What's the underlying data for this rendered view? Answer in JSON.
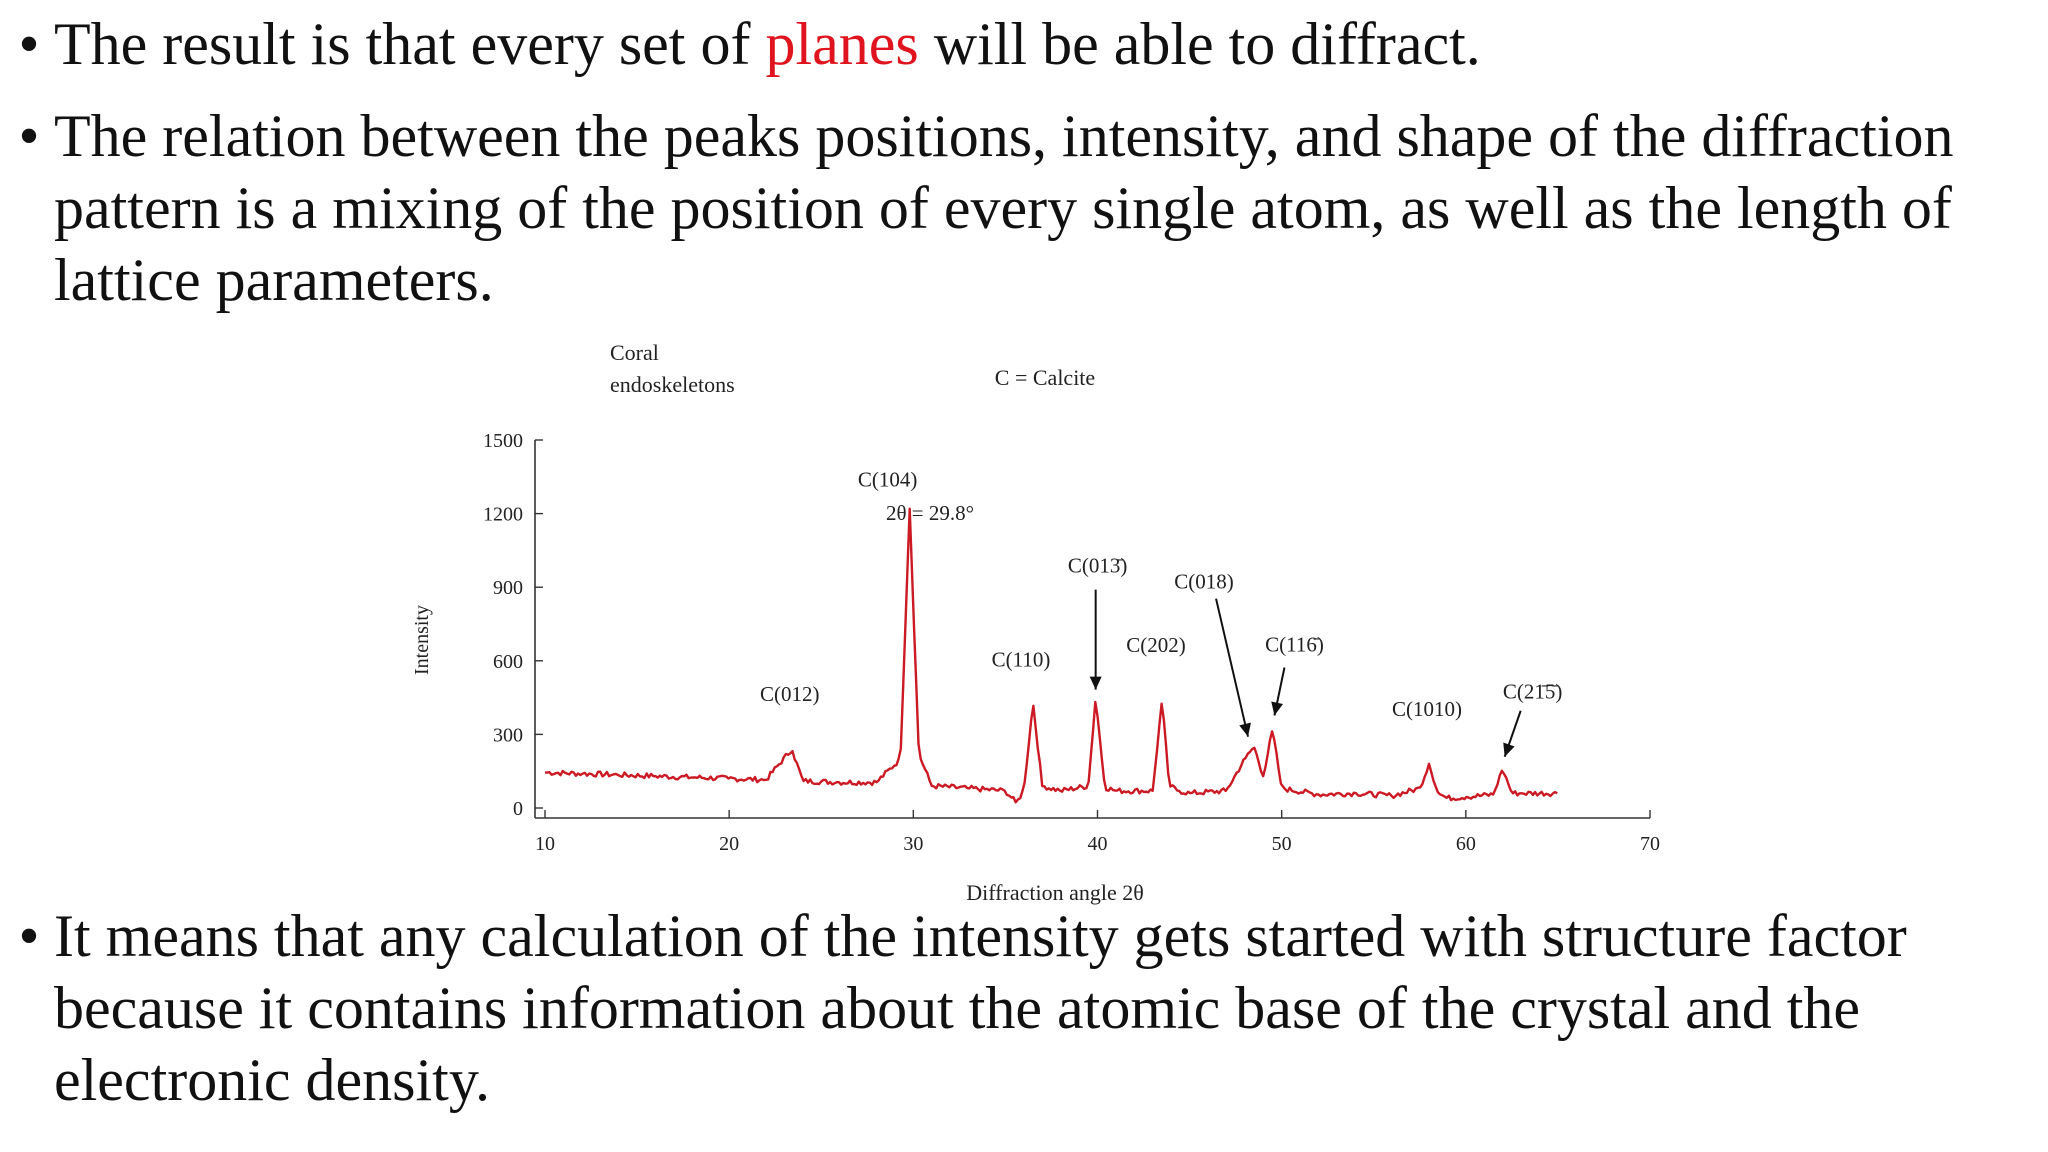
{
  "bullets": [
    {
      "pre": "The result is that every set of ",
      "highlight": "planes",
      "post": " will be able to diffract."
    },
    {
      "text": "The relation between the peaks positions, intensity, and shape of the diffraction pattern is a mixing of the position of every single atom, as well as the length of lattice parameters."
    },
    {
      "text": "It means that any calculation of the intensity gets started with structure factor because it contains information about the atomic base of the crystal and the electronic density."
    }
  ],
  "bullet_symbol": "•",
  "colors": {
    "highlight": "#e0141e",
    "trace": "#cc1a24",
    "text": "#111111"
  },
  "chart_data": {
    "type": "line",
    "sample_label_line1": "Coral",
    "sample_label_line2": "endoskeletons",
    "legend_note": "C = Calcite",
    "xlabel": "Diffraction angle 2θ",
    "ylabel": "Intensity",
    "xlim": [
      10,
      70
    ],
    "ylim": [
      0,
      1500
    ],
    "x_ticks": [
      "10",
      "20",
      "30",
      "40",
      "50",
      "60",
      "70"
    ],
    "y_ticks": [
      "0",
      "300",
      "600",
      "900",
      "1200",
      "1500"
    ],
    "peak_annotation": "2θ = 29.8°",
    "series": [
      {
        "x": [
          10,
          12,
          14,
          16,
          18,
          20,
          22,
          23.4,
          24,
          26,
          28,
          29.3,
          29.8,
          30.3,
          31,
          33,
          35,
          35.6,
          36,
          36.5,
          37,
          38,
          39.5,
          39.9,
          40.4,
          41,
          43,
          43.5,
          43.9,
          44.4,
          45,
          47,
          48,
          48.5,
          49,
          49.5,
          50,
          52,
          54,
          56,
          57.5,
          58,
          58.5,
          59,
          60,
          61.5,
          62,
          62.5,
          63,
          65
        ],
        "y": [
          145,
          140,
          135,
          130,
          125,
          120,
          115,
          240,
          110,
          105,
          105,
          200,
          1220,
          220,
          90,
          80,
          70,
          20,
          75,
          430,
          90,
          70,
          90,
          450,
          85,
          70,
          70,
          440,
          90,
          70,
          60,
          70,
          200,
          250,
          130,
          320,
          80,
          55,
          60,
          50,
          80,
          180,
          60,
          40,
          45,
          55,
          160,
          60,
          60,
          60
        ]
      }
    ],
    "peaks": [
      {
        "label": "C(012)",
        "x": 23.4,
        "y": 240
      },
      {
        "label": "C(104)",
        "x": 29.8,
        "y": 1220
      },
      {
        "label": "C(110)",
        "x": 36.5,
        "y": 430
      },
      {
        "label": "C(013̄)",
        "x": 39.9,
        "y": 450
      },
      {
        "label": "C(202)",
        "x": 43.5,
        "y": 440
      },
      {
        "label": "C(018)",
        "x": 48.5,
        "y": 250
      },
      {
        "label": "C(116̄)",
        "x": 49.5,
        "y": 320
      },
      {
        "label": "C(1010)",
        "x": 58,
        "y": 180
      },
      {
        "label": "C(21̄5̄)",
        "x": 62,
        "y": 160
      }
    ]
  }
}
